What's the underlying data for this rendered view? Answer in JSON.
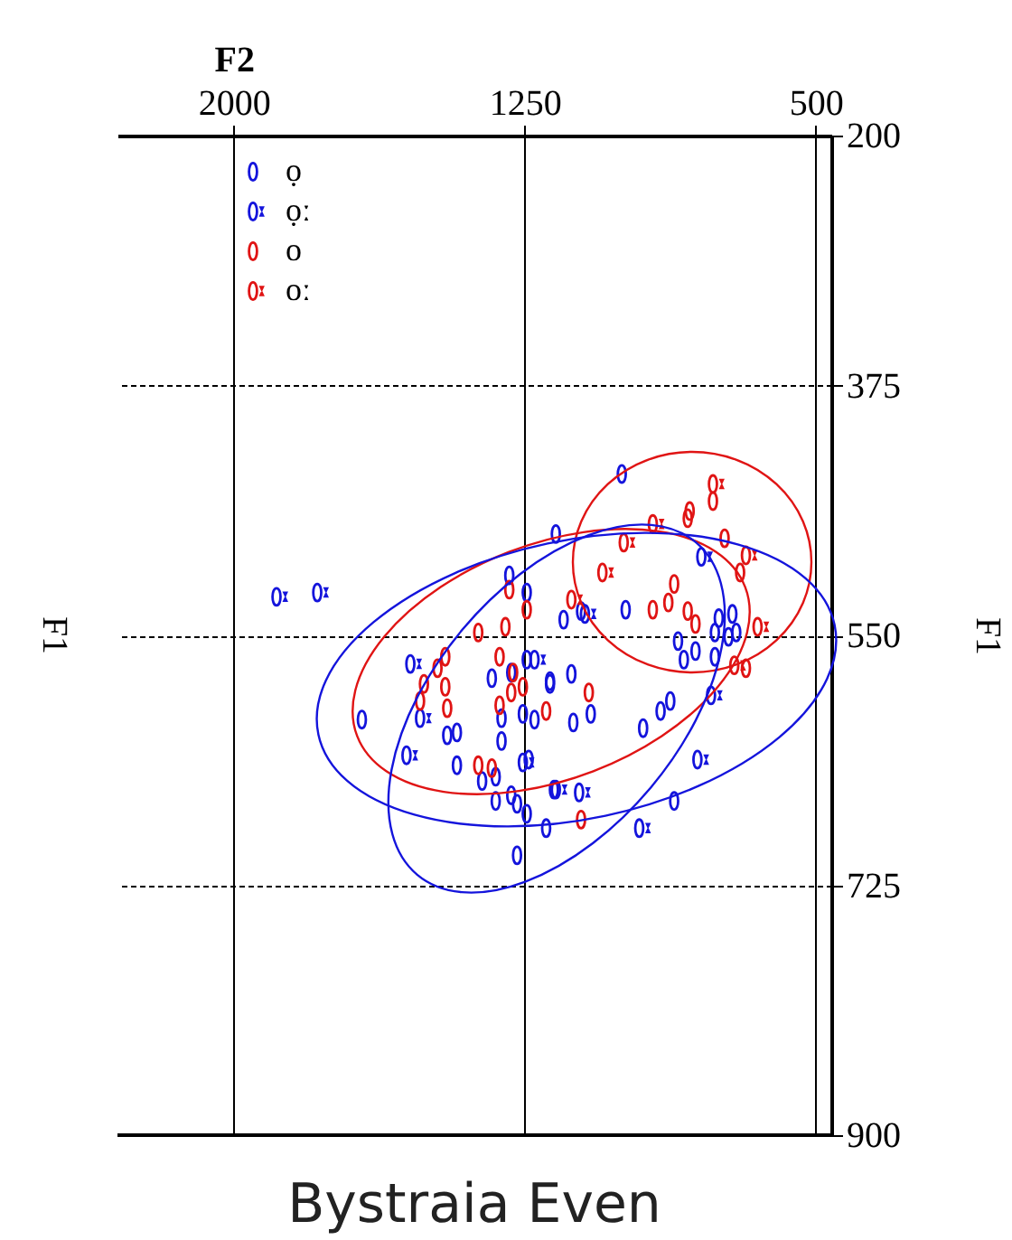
{
  "chart_data": {
    "type": "scatter",
    "title": "Bystraia Even",
    "xlabel": "F2",
    "ylabel": "F1",
    "legend": "top left",
    "xlim": [
      2300,
      460
    ],
    "xticks": [
      2000,
      1250,
      500
    ],
    "ylim": [
      900,
      200
    ],
    "yticks": [
      200,
      375,
      550,
      725,
      900
    ],
    "grid": true,
    "series": [
      {
        "type": "scatter",
        "name": "ọ",
        "color": "#1414dc",
        "x": [
          1170,
          1290,
          1245,
          1335,
          1285,
          1245,
          1185,
          1670,
          1450,
          1425,
          1310,
          1255,
          1225,
          1310,
          1425,
          1360,
          1325,
          1240,
          1325,
          1285,
          1270,
          1245,
          1195,
          1175,
          1270,
          1000,
          1150,
          1105,
          990,
          750,
          715,
          725,
          705,
          760,
          855,
          810,
          840,
          760,
          1185,
          1130,
          1125,
          1080,
          945,
          900,
          875,
          865
        ],
        "values": [
          479,
          508,
          520,
          580,
          576,
          567,
          584,
          609,
          620,
          618,
          608,
          605,
          609,
          624,
          641,
          652,
          649,
          637,
          666,
          662,
          668,
          675,
          685,
          658,
          704,
          437,
          539,
          533,
          532,
          538,
          535,
          551,
          548,
          548,
          554,
          561,
          567,
          565,
          582,
          577,
          611,
          605,
          615,
          603,
          596,
          666
        ]
      },
      {
        "type": "scatter",
        "name": "ọː",
        "color": "#1414dc",
        "x": [
          1890,
          1785,
          1545,
          1225,
          1520,
          1555,
          1255,
          795,
          1095,
          770,
          805,
          1170,
          1110,
          955
        ],
        "values": [
          523,
          520,
          570,
          567,
          608,
          634,
          639,
          495,
          535,
          592,
          637,
          658,
          660,
          685
        ]
      },
      {
        "type": "scatter",
        "name": "o",
        "color": "#e01414",
        "x": [
          1290,
          1245,
          1370,
          1300,
          1475,
          1455,
          1510,
          1455,
          1520,
          1450,
          1315,
          1280,
          1285,
          1255,
          1315,
          1195,
          1370,
          1335,
          765,
          825,
          830,
          735,
          695,
          865,
          920,
          880,
          830,
          810,
          680,
          1085,
          1105
        ],
        "values": [
          518,
          532,
          548,
          544,
          573,
          565,
          584,
          586,
          596,
          601,
          565,
          576,
          590,
          586,
          599,
          603,
          641,
          643,
          456,
          463,
          468,
          482,
          506,
          514,
          532,
          527,
          533,
          542,
          573,
          590,
          679
        ]
      },
      {
        "type": "scatter",
        "name": "oː",
        "color": "#e01414",
        "x": [
          765,
          920,
          995,
          680,
          1050,
          1130,
          650,
          710
        ],
        "values": [
          444,
          472,
          485,
          494,
          506,
          525,
          544,
          571
        ]
      }
    ]
  }
}
